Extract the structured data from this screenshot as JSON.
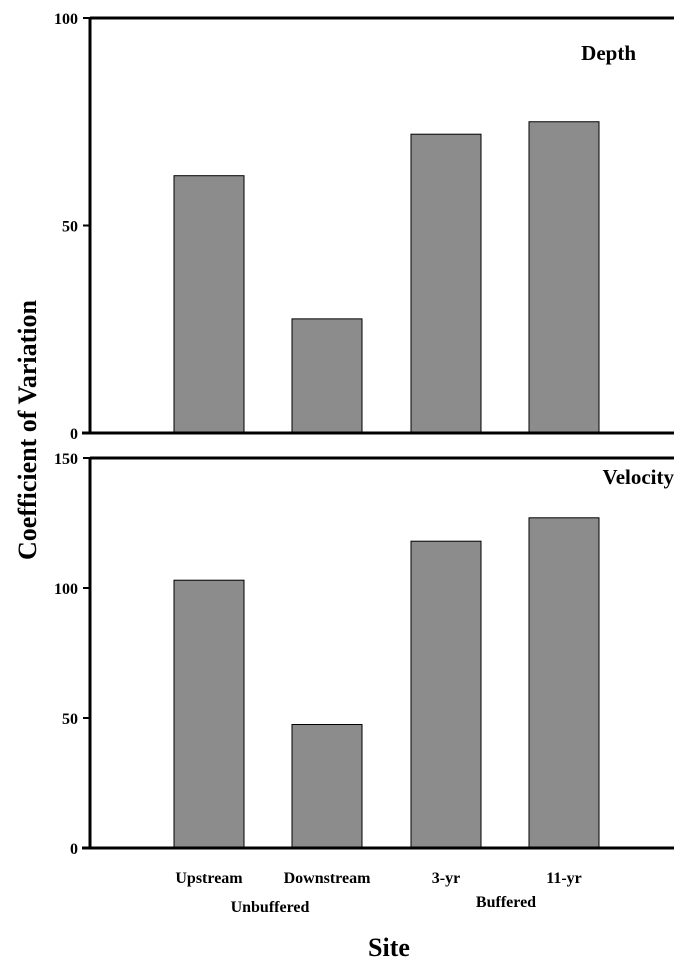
{
  "chart_data": [
    {
      "type": "bar",
      "title": "Depth",
      "categories": [
        "Upstream",
        "Downstream",
        "3-yr",
        "11-yr"
      ],
      "values": [
        62,
        27.5,
        72,
        75
      ],
      "ylim": [
        0,
        100
      ],
      "yticks": [
        "0",
        "50",
        "100"
      ],
      "color": "#8c8c8c"
    },
    {
      "type": "bar",
      "title": "Velocity",
      "categories": [
        "Upstream",
        "Downstream",
        "3-yr",
        "11-yr"
      ],
      "values": [
        103,
        47.5,
        118,
        127
      ],
      "ylim": [
        0,
        150
      ],
      "yticks": [
        "0",
        "50",
        "100",
        "150"
      ],
      "color": "#8c8c8c"
    }
  ],
  "axes": {
    "ylabel": "Coefficient of Variation",
    "xlabel": "Site"
  },
  "groups": [
    "Unbuffered",
    "Buffered"
  ]
}
